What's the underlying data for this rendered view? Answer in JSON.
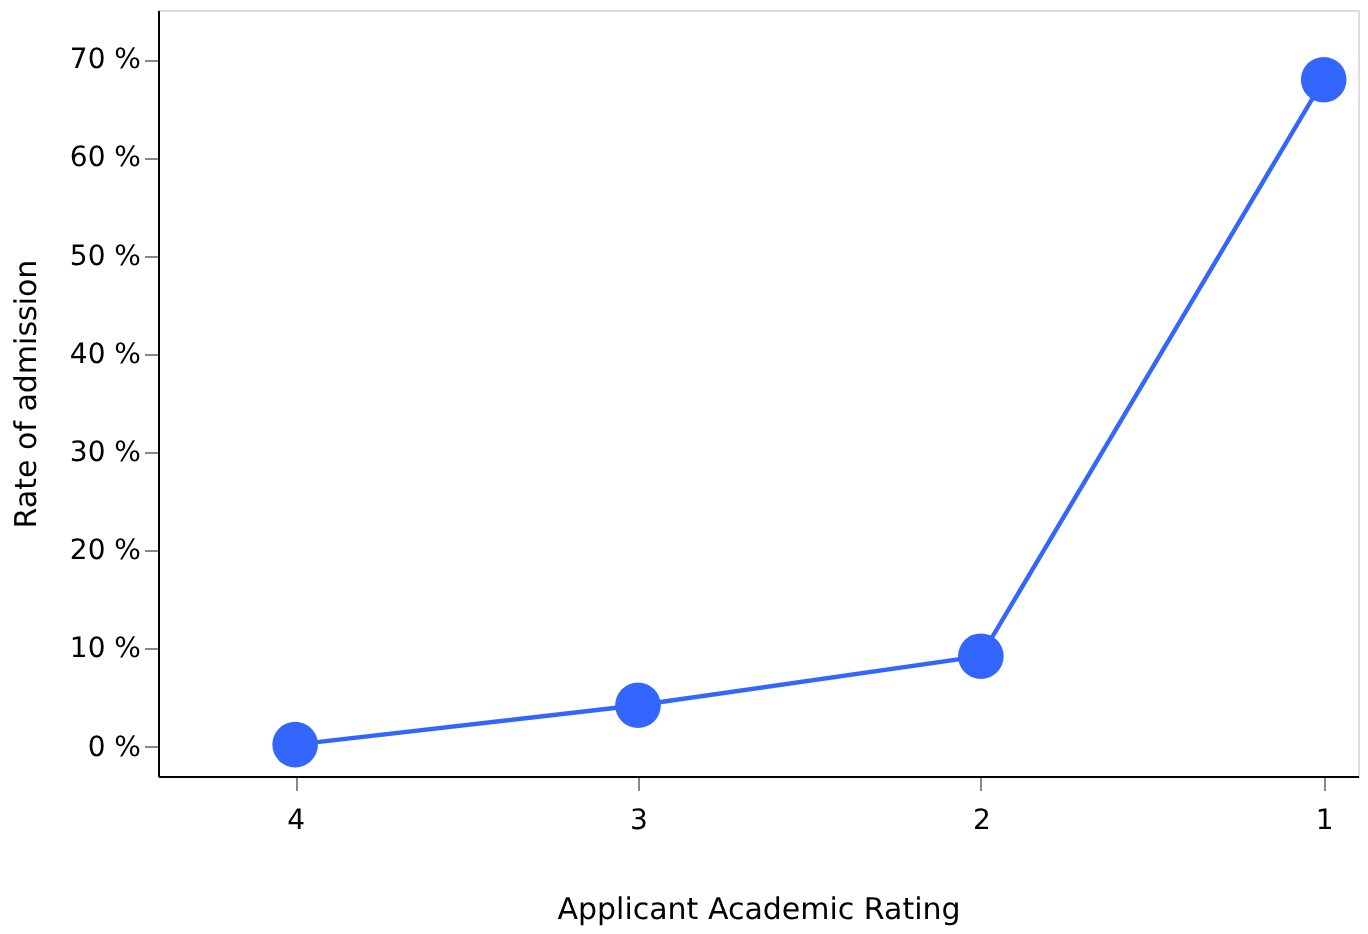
{
  "chart_data": {
    "type": "line",
    "xlabel": "Applicant Academic Rating",
    "ylabel": "Rate of admission",
    "categories": [
      "4",
      "3",
      "2",
      "1"
    ],
    "series": [
      {
        "color": "#3366ff",
        "values": [
          0.2,
          4.2,
          9.2,
          67.9
        ]
      }
    ],
    "ylim": [
      -3,
      75
    ],
    "yticks": [
      {
        "value": 0,
        "label": "0 %"
      },
      {
        "value": 10,
        "label": "10 %"
      },
      {
        "value": 20,
        "label": "20 %"
      },
      {
        "value": 30,
        "label": "30 %"
      },
      {
        "value": 40,
        "label": "40 %"
      },
      {
        "value": 50,
        "label": "50 %"
      },
      {
        "value": 60,
        "label": "60 %"
      },
      {
        "value": 70,
        "label": "70 %"
      }
    ],
    "grid": false,
    "marker": "circle",
    "line_style": "solid"
  }
}
